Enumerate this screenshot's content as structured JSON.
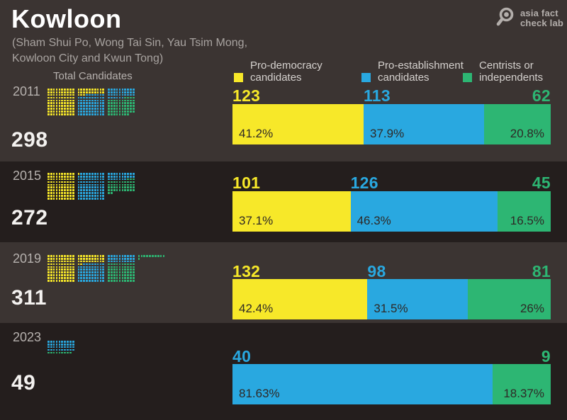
{
  "header": {
    "title": "Kowloon",
    "subtitle_line1": "(Sham Shui Po, Wong Tai Sin, Yau Tsim Mong,",
    "subtitle_line2": "Kowloon City and Kwun Tong)",
    "logo_line1": "asia fact",
    "logo_line2": "check lab"
  },
  "legend": {
    "total_label": "Total Candidates",
    "items": [
      {
        "line1": "Pro-democracy",
        "line2": "candidates"
      },
      {
        "line1": "Pro-establishment",
        "line2": "candidates"
      },
      {
        "line1": "Centrists or",
        "line2": "independents"
      }
    ]
  },
  "colors": {
    "background": "#3b3432",
    "band_dark": "#241e1d",
    "pro_democracy": "#f7e829",
    "pro_establishment": "#29a8e0",
    "centrist": "#2db673",
    "title_text": "#ffffff",
    "muted_text": "#b6b1ae",
    "percent_text": "#2e2926"
  },
  "chart_data": {
    "type": "bar",
    "variant": "horizontal-stacked-with-waffle",
    "title": "Kowloon",
    "unit": "candidates",
    "legend_position": "top",
    "categories": [
      "2011",
      "2015",
      "2019",
      "2023"
    ],
    "totals": [
      298,
      272,
      311,
      49
    ],
    "series": [
      {
        "name": "Pro-democracy candidates",
        "key": "pro_democracy",
        "color": "#f7e829",
        "counts": [
          123,
          101,
          132,
          0
        ],
        "percents": [
          41.2,
          37.1,
          42.4,
          0
        ]
      },
      {
        "name": "Pro-establishment candidates",
        "key": "pro_establishment",
        "color": "#29a8e0",
        "counts": [
          113,
          126,
          98,
          40
        ],
        "percents": [
          37.9,
          46.3,
          31.5,
          81.63
        ]
      },
      {
        "name": "Centrists or independents",
        "key": "centrist",
        "color": "#2db673",
        "counts": [
          62,
          45,
          81,
          9
        ],
        "percents": [
          20.8,
          16.5,
          26,
          18.37
        ]
      }
    ],
    "rows": [
      {
        "year": "2011",
        "total": "298",
        "segments": [
          {
            "series": "pro_democracy",
            "count": "123",
            "pct": 41.2,
            "pct_label": "41.2%"
          },
          {
            "series": "pro_establishment",
            "count": "113",
            "pct": 37.9,
            "pct_label": "37.9%"
          },
          {
            "series": "centrist",
            "count": "62",
            "pct": 20.8,
            "pct_label": "20.8%"
          }
        ]
      },
      {
        "year": "2015",
        "total": "272",
        "segments": [
          {
            "series": "pro_democracy",
            "count": "101",
            "pct": 37.1,
            "pct_label": "37.1%"
          },
          {
            "series": "pro_establishment",
            "count": "126",
            "pct": 46.3,
            "pct_label": "46.3%"
          },
          {
            "series": "centrist",
            "count": "45",
            "pct": 16.5,
            "pct_label": "16.5%"
          }
        ]
      },
      {
        "year": "2019",
        "total": "311",
        "segments": [
          {
            "series": "pro_democracy",
            "count": "132",
            "pct": 42.4,
            "pct_label": "42.4%"
          },
          {
            "series": "pro_establishment",
            "count": "98",
            "pct": 31.5,
            "pct_label": "31.5%"
          },
          {
            "series": "centrist",
            "count": "81",
            "pct": 26,
            "pct_label": "26%"
          }
        ]
      },
      {
        "year": "2023",
        "total": "49",
        "segments": [
          {
            "series": "pro_establishment",
            "count": "40",
            "pct": 81.63,
            "pct_label": "81.63%"
          },
          {
            "series": "centrist",
            "count": "9",
            "pct": 18.37,
            "pct_label": "18.37%"
          }
        ]
      }
    ],
    "waffle": {
      "dot_represents": "1 candidate",
      "block_grid": "10x10"
    }
  }
}
